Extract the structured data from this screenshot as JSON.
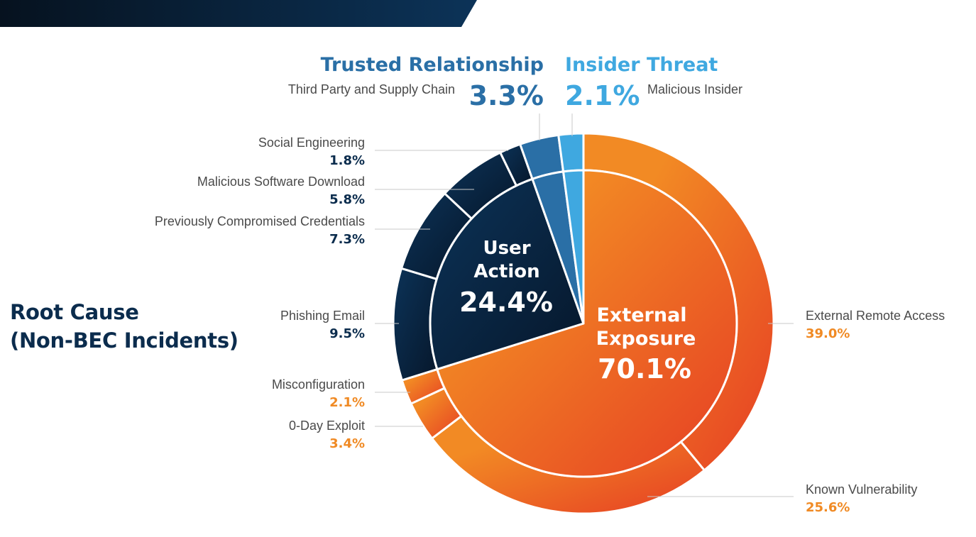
{
  "title": {
    "line1": "Root Cause",
    "line2": "(Non-BEC Incidents)"
  },
  "colors": {
    "banner": "#0b2a4a",
    "navy": "#0b2c4d",
    "trusted": "#2a6fa6",
    "insider": "#3fa8e0",
    "orange": "#f08a24",
    "orange_dark": "#e8542a"
  },
  "chart_data": {
    "type": "pie",
    "title": "Root Cause (Non-BEC Incidents)",
    "inner": [
      {
        "name": "External Exposure",
        "value": 70.1
      },
      {
        "name": "User Action",
        "value": 24.4
      },
      {
        "name": "Trusted Relationship",
        "value": 3.3
      },
      {
        "name": "Insider Threat",
        "value": 2.1
      }
    ],
    "outer": [
      {
        "name": "External Remote Access",
        "group": "External Exposure",
        "value": 39.0
      },
      {
        "name": "Known Vulnerability",
        "group": "External Exposure",
        "value": 25.6
      },
      {
        "name": "0-Day Exploit",
        "group": "External Exposure",
        "value": 3.4
      },
      {
        "name": "Misconfiguration",
        "group": "External Exposure",
        "value": 2.1
      },
      {
        "name": "Phishing Email",
        "group": "User Action",
        "value": 9.5
      },
      {
        "name": "Previously Compromised Credentials",
        "group": "User Action",
        "value": 7.3
      },
      {
        "name": "Malicious Software Download",
        "group": "User Action",
        "value": 5.8
      },
      {
        "name": "Social Engineering",
        "group": "User Action",
        "value": 1.8
      },
      {
        "name": "Third Party and Supply Chain",
        "group": "Trusted Relationship",
        "value": 3.3
      },
      {
        "name": "Malicious Insider",
        "group": "Insider Threat",
        "value": 2.1
      }
    ],
    "inner_labels": {
      "external": {
        "line1": "External",
        "line2": "Exposure",
        "value": "70.1%"
      },
      "user": {
        "line1": "User",
        "line2": "Action",
        "value": "24.4%"
      }
    },
    "top_groups": {
      "trusted": {
        "name": "Trusted Relationship",
        "value": "3.3%",
        "sub": "Third Party and Supply Chain"
      },
      "insider": {
        "name": "Insider Threat",
        "value": "2.1%",
        "sub": "Malicious Insider"
      }
    },
    "outer_labels": [
      {
        "name": "Social Engineering",
        "value": "1.8%"
      },
      {
        "name": "Malicious Software Download",
        "value": "5.8%"
      },
      {
        "name": "Previously Compromised Credentials",
        "value": "7.3%"
      },
      {
        "name": "Phishing Email",
        "value": "9.5%"
      },
      {
        "name": "Misconfiguration",
        "value": "2.1%"
      },
      {
        "name": "0-Day Exploit",
        "value": "3.4%"
      },
      {
        "name": "External Remote Access",
        "value": "39.0%"
      },
      {
        "name": "Known Vulnerability",
        "value": "25.6%"
      }
    ]
  }
}
